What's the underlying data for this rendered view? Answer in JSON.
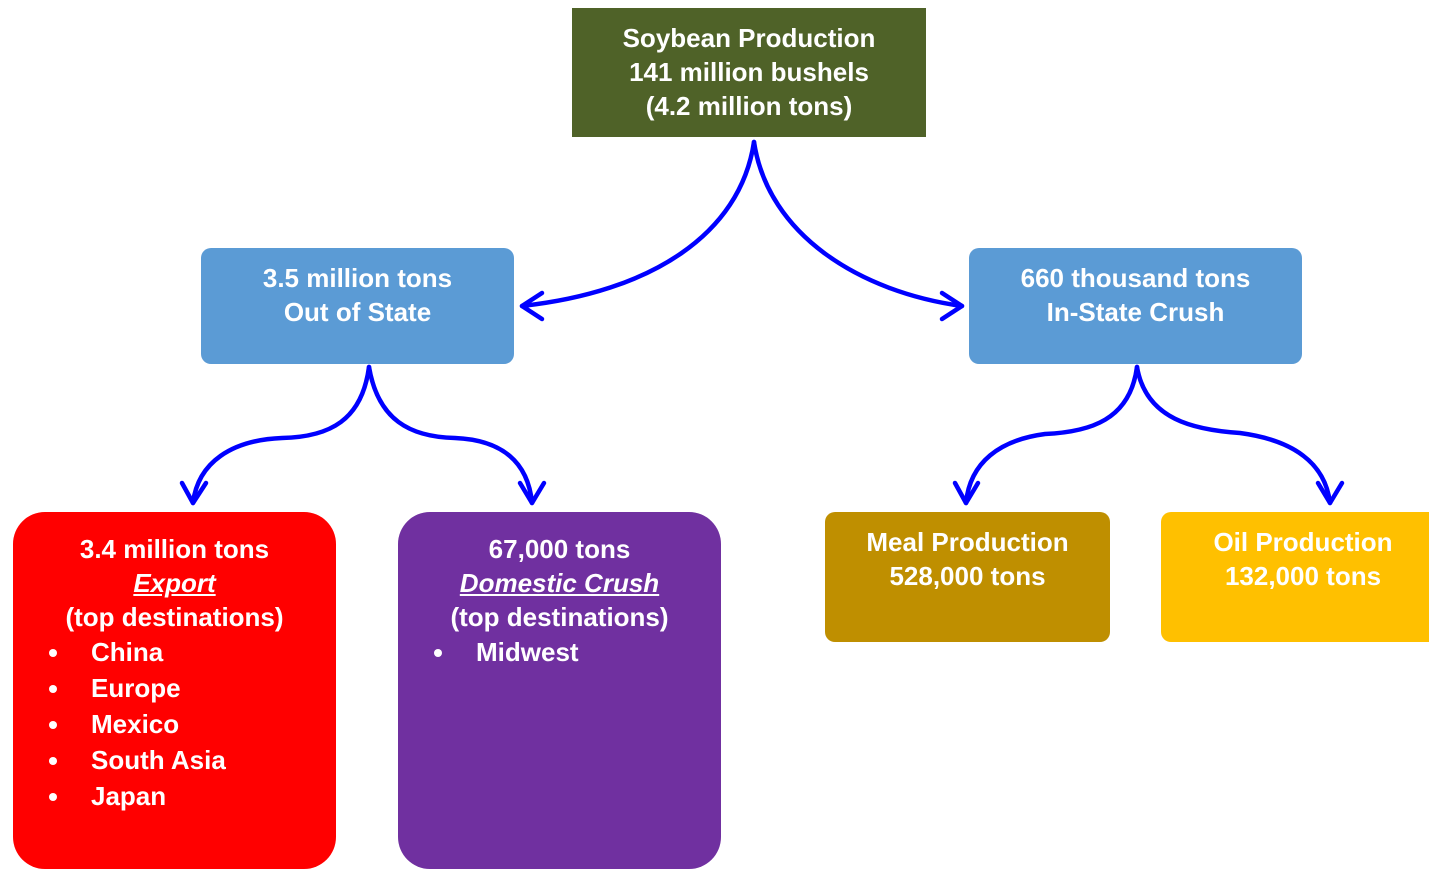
{
  "nodes": [
    {
      "lines": [
        "Soybean Production",
        "141 million bushels",
        "(4.2 million tons)"
      ]
    },
    {
      "lines": [
        "3.5 million tons",
        "Out of State"
      ]
    },
    {
      "lines": [
        "660 thousand tons",
        "In-State Crush"
      ]
    },
    {
      "lines": [
        "3.4 million tons",
        "Export",
        "(top destinations)"
      ],
      "items": [
        "China",
        "Europe",
        "Mexico",
        "South Asia",
        "Japan"
      ]
    },
    {
      "lines": [
        "67,000 tons",
        "Domestic Crush",
        "(top destinations)"
      ],
      "items": [
        "Midwest"
      ]
    },
    {
      "lines": [
        "Meal Production",
        "528,000 tons"
      ]
    },
    {
      "lines": [
        "Oil Production",
        "132,000 tons"
      ]
    }
  ]
}
